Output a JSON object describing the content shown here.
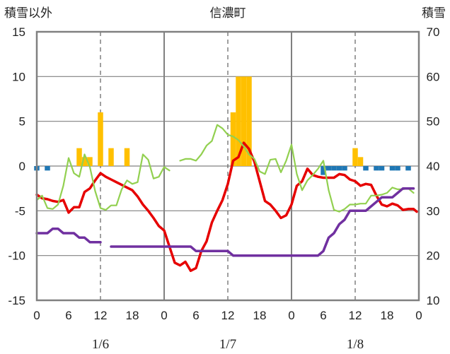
{
  "chart_data": {
    "type": "line",
    "title": "信濃町",
    "ylabel_left": "積雪以外",
    "ylabel_right": "積雪",
    "left_axis": {
      "min": -15,
      "max": 15,
      "ticks": [
        15,
        10,
        5,
        0,
        -5,
        -10,
        -15
      ]
    },
    "right_axis": {
      "min": 10,
      "max": 70,
      "ticks": [
        70,
        60,
        50,
        40,
        30,
        20,
        10
      ]
    },
    "x_axis": {
      "min": 0,
      "max": 72,
      "hour_ticks": [
        0,
        6,
        12,
        18,
        0,
        6,
        12,
        18,
        0,
        6,
        12,
        18,
        0
      ],
      "day_labels": [
        "1/6",
        "1/7",
        "1/8"
      ],
      "day_label_positions": [
        12,
        36,
        60
      ],
      "dashed_gridlines": [
        12,
        36,
        60
      ],
      "solid_gridlines": [
        24,
        48
      ]
    },
    "grid": true,
    "series": [
      {
        "type": "bar",
        "color": "#FFC000",
        "axis": "left",
        "x": [
          8,
          9,
          10,
          12,
          14,
          17,
          37,
          38,
          39,
          40,
          60,
          61
        ],
        "values": [
          2,
          1,
          1,
          6,
          2,
          2,
          6,
          10,
          10,
          10,
          2,
          1
        ]
      },
      {
        "type": "bar",
        "color": "#1F77B4",
        "axis": "left",
        "x": [
          0,
          2,
          54,
          55,
          56,
          57,
          58,
          62,
          64,
          65,
          67,
          68,
          70
        ],
        "values": [
          -0.5,
          -0.5,
          -1,
          -0.5,
          -0.5,
          -0.5,
          -0.5,
          -0.5,
          -0.5,
          -0.5,
          -0.5,
          -0.5,
          -0.5
        ]
      },
      {
        "type": "line",
        "color": "#E60000",
        "axis": "left",
        "x": [
          0,
          1,
          2,
          3,
          4,
          5,
          6,
          7,
          8,
          9,
          10,
          11,
          12,
          13,
          14,
          15,
          16,
          17,
          18,
          19,
          20,
          21,
          22,
          23,
          24,
          25,
          26,
          27,
          28,
          29,
          30,
          31,
          32,
          33,
          34,
          35,
          36,
          37,
          38,
          39,
          40,
          41,
          42,
          43,
          44,
          45,
          46,
          47,
          48,
          49,
          50,
          51,
          52,
          53,
          54,
          55,
          56,
          57,
          58,
          59,
          60,
          61,
          62,
          63,
          64,
          65,
          66,
          67,
          68,
          69,
          70,
          71
        ],
        "values": [
          -3.2,
          -3.6,
          -3.7,
          -3.9,
          -4.0,
          -3.8,
          -5.2,
          -4.6,
          -4.6,
          -2.9,
          -2.5,
          -1.6,
          -0.8,
          -1.2,
          -1.5,
          -1.8,
          -2.1,
          -2.4,
          -2.7,
          -3.4,
          -4.3,
          -5.0,
          -5.8,
          -6.7,
          -7.2,
          -9.0,
          -10.8,
          -11.1,
          -10.7,
          -11.7,
          -11.4,
          -9.5,
          -8.4,
          -6.3,
          -5.0,
          -3.8,
          -2.0,
          0.6,
          1.0,
          2.6,
          1.9,
          0.5,
          -1.7,
          -3.9,
          -4.3,
          -5.0,
          -5.8,
          -5.5,
          -4.3,
          -2.2,
          -1.7,
          -0.3,
          -1.0,
          -1.2,
          -1.3,
          -1.3,
          -1.3,
          -0.9,
          -1.0,
          -1.5,
          -1.7,
          -2.2,
          -2.0,
          -2.1,
          -3.3,
          -4.3,
          -4.5,
          -4.2,
          -4.4,
          -4.9,
          -4.8,
          -4.8
        ],
        "extra_end": -5.1
      },
      {
        "type": "line",
        "color": "#92D050",
        "axis": "left",
        "x": [
          0,
          1,
          2,
          3,
          4,
          5,
          6,
          7,
          8,
          9,
          10,
          11,
          12,
          13,
          14,
          15,
          16,
          17,
          18,
          19,
          20,
          21,
          22,
          23,
          24,
          25
        ],
        "values": [
          -3.8,
          -3.3,
          -4.7,
          -4.8,
          -4.3,
          -2.2,
          0.9,
          -0.8,
          -1.2,
          1.3,
          -0.1,
          -2.8,
          -4.7,
          -4.9,
          -4.4,
          -4.4,
          -2.6,
          -1.6,
          -2.0,
          -1.8,
          1.3,
          0.7,
          -1.4,
          -1.2,
          -0.1,
          -0.5
        ]
      },
      {
        "type": "line",
        "color": "#92D050",
        "axis": "left",
        "x": [
          27,
          28,
          29,
          30,
          31,
          32,
          33,
          34,
          35,
          36,
          37,
          38,
          39,
          40,
          41,
          42,
          43,
          44,
          45,
          46,
          47,
          48,
          49,
          50,
          51,
          52,
          53,
          54,
          55,
          56,
          57,
          58,
          59,
          60,
          61,
          62,
          63,
          64,
          65,
          66,
          67,
          68,
          69,
          70,
          71
        ],
        "values": [
          0.6,
          0.8,
          0.8,
          0.6,
          1.3,
          2.3,
          2.8,
          4.6,
          4.2,
          3.5,
          3.3,
          2.9,
          2.2,
          1.3,
          0.8,
          -0.6,
          -0.9,
          0.7,
          0.8,
          -0.7,
          0.6,
          2.4,
          -0.9,
          -2.7,
          -1.6,
          -1.0,
          -0.3,
          0.6,
          -2.7,
          -4.9,
          -5.1,
          -4.8,
          -4.3,
          -4.3,
          -4.2,
          -4.2,
          -3.3,
          -3.3,
          -3.2,
          -3.0,
          -2.4,
          -2.6,
          -2.6,
          -2.5,
          -3.0
        ]
      },
      {
        "type": "line",
        "color": "#7030A0",
        "axis": "right",
        "x": [
          0,
          1,
          2,
          3,
          4,
          5,
          6,
          7,
          8,
          9,
          10,
          11,
          12
        ],
        "values": [
          25,
          25,
          25,
          26,
          26,
          25,
          25,
          25,
          24,
          24,
          23,
          23,
          23
        ]
      },
      {
        "type": "line",
        "color": "#7030A0",
        "axis": "right",
        "x": [
          14,
          15,
          16,
          17,
          18,
          19,
          20,
          21,
          22,
          23,
          24,
          25,
          26,
          27,
          28,
          29,
          30,
          31,
          32,
          33,
          34,
          35,
          36,
          37,
          38,
          39,
          40,
          41,
          42,
          43,
          44,
          45,
          46,
          47,
          48,
          49,
          50,
          51,
          52,
          53,
          54,
          55,
          56,
          57,
          58,
          59,
          60,
          61,
          62,
          63,
          64,
          65,
          66,
          67,
          68,
          69,
          70,
          71
        ],
        "values": [
          22,
          22,
          22,
          22,
          22,
          22,
          22,
          22,
          22,
          22,
          22,
          22,
          22,
          22,
          22,
          22,
          21,
          21,
          21,
          21,
          21,
          21,
          21,
          20,
          20,
          20,
          20,
          20,
          20,
          20,
          20,
          20,
          20,
          20,
          20,
          20,
          20,
          20,
          20,
          20,
          21,
          24,
          25,
          27,
          28,
          30,
          30,
          30,
          30,
          31,
          32,
          33,
          33,
          33,
          34,
          35,
          35,
          35
        ]
      }
    ]
  }
}
